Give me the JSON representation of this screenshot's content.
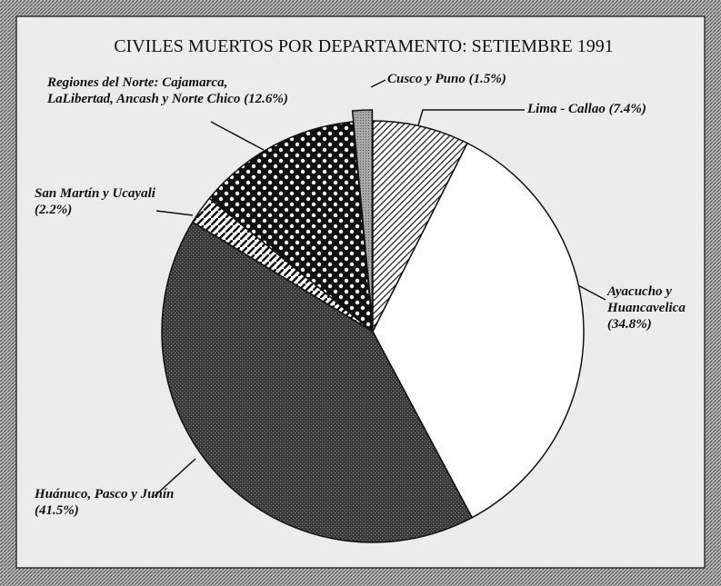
{
  "chart_data": {
    "type": "pie",
    "title": "CIVILES MUERTOS POR DEPARTAMENTO: SETIEMBRE 1991",
    "categories": [
      "Lima - Callao",
      "Ayacucho y Huancavelica",
      "Huánuco, Pasco y Junín",
      "San Martín y Ucayali",
      "Regiones del Norte: Cajamarca, LaLibertad, Ancash y Norte Chico",
      "Cusco y Puno"
    ],
    "values": [
      7.4,
      34.8,
      41.5,
      2.2,
      12.6,
      1.5
    ],
    "value_labels": [
      "(7.4%)",
      "(34.8%)",
      "(41.5%)",
      "(2.2%)",
      "(12.6%)",
      "(1.5%)"
    ],
    "colors": [
      "#ffffff",
      "#ffffff",
      "#3a3a3a",
      "#ffffff",
      "#111111",
      "#a8a8a8"
    ]
  }
}
